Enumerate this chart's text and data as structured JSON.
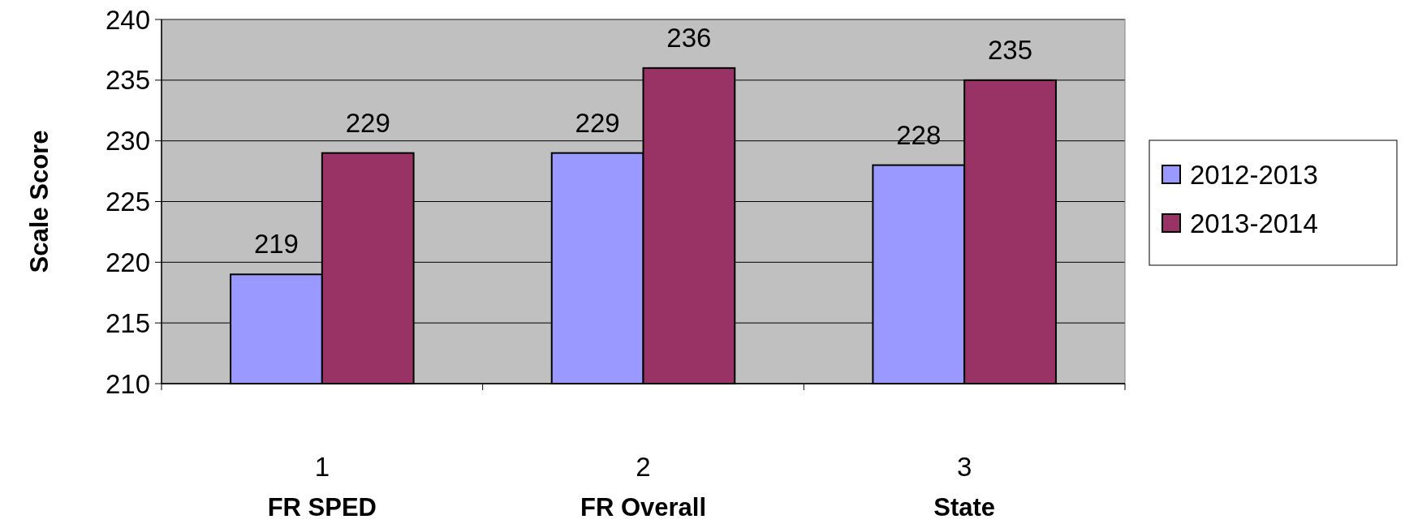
{
  "chart_data": {
    "type": "bar",
    "ylabel": "Scale Score",
    "categories": [
      "1",
      "2",
      "3"
    ],
    "series": [
      {
        "name": "2012-2013",
        "color": "#9999ff",
        "values": [
          219,
          229,
          228
        ]
      },
      {
        "name": "2013-2014",
        "color": "#993366",
        "values": [
          229,
          236,
          235
        ]
      }
    ],
    "ylim": [
      210,
      240
    ],
    "yticks": [
      210,
      215,
      220,
      225,
      230,
      235,
      240
    ],
    "grid": "y",
    "legend": "right",
    "data_labels": true,
    "annotations": [
      "FR SPED",
      "FR Overall",
      "State"
    ]
  }
}
